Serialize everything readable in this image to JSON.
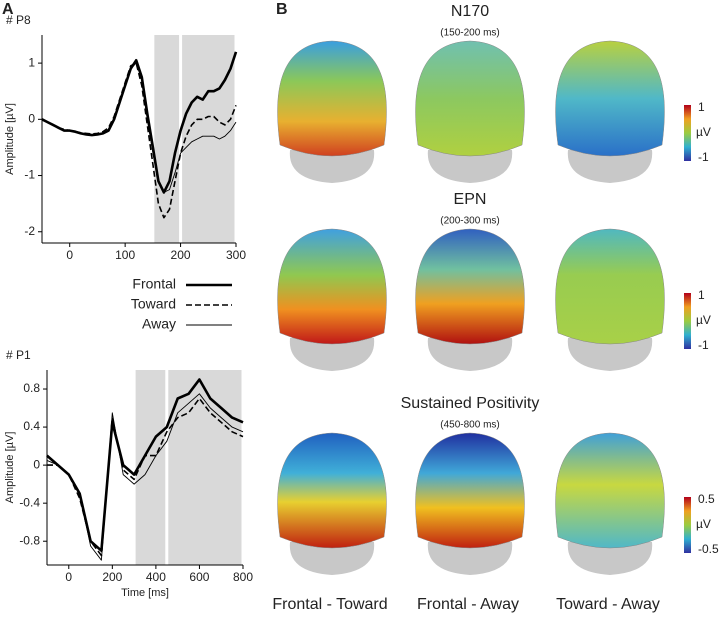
{
  "panel_labels": [
    "A",
    "B"
  ],
  "chart_data": [
    {
      "type": "line",
      "title": "# P8",
      "y_label": "Amplitude [µV]",
      "x": [
        -50,
        -40,
        -30,
        -20,
        -10,
        0,
        10,
        20,
        30,
        40,
        50,
        60,
        70,
        80,
        90,
        100,
        110,
        120,
        130,
        140,
        150,
        160,
        170,
        180,
        190,
        200,
        210,
        220,
        230,
        240,
        250,
        260,
        270,
        280,
        290,
        300
      ],
      "series": [
        {
          "name": "Frontal",
          "color": "#000000",
          "dash": "solid",
          "width": 2.6,
          "values": [
            0.0,
            -0.05,
            -0.1,
            -0.15,
            -0.2,
            -0.2,
            -0.22,
            -0.25,
            -0.27,
            -0.28,
            -0.27,
            -0.25,
            -0.2,
            0.0,
            0.3,
            0.6,
            0.9,
            1.05,
            0.75,
            0.1,
            -0.5,
            -1.1,
            -1.3,
            -1.1,
            -0.6,
            -0.2,
            0.1,
            0.3,
            0.4,
            0.35,
            0.5,
            0.5,
            0.55,
            0.7,
            0.9,
            1.2
          ]
        },
        {
          "name": "Toward",
          "color": "#000000",
          "dash": "dashed",
          "width": 1.6,
          "values": [
            0.0,
            -0.05,
            -0.1,
            -0.15,
            -0.18,
            -0.2,
            -0.22,
            -0.24,
            -0.25,
            -0.26,
            -0.25,
            -0.22,
            -0.15,
            0.05,
            0.35,
            0.65,
            0.95,
            1.0,
            0.6,
            -0.1,
            -0.8,
            -1.5,
            -1.75,
            -1.6,
            -1.1,
            -0.6,
            -0.3,
            -0.1,
            0.0,
            0.0,
            0.05,
            0.05,
            -0.05,
            -0.1,
            0.0,
            0.25
          ]
        },
        {
          "name": "Away",
          "color": "#000000",
          "dash": "solid",
          "width": 0.9,
          "values": [
            0.0,
            -0.05,
            -0.1,
            -0.15,
            -0.2,
            -0.2,
            -0.22,
            -0.25,
            -0.27,
            -0.28,
            -0.27,
            -0.25,
            -0.18,
            0.0,
            0.3,
            0.6,
            0.9,
            1.0,
            0.7,
            0.0,
            -0.6,
            -1.1,
            -1.3,
            -1.25,
            -0.95,
            -0.6,
            -0.5,
            -0.4,
            -0.35,
            -0.3,
            -0.3,
            -0.3,
            -0.35,
            -0.3,
            -0.2,
            -0.05
          ]
        }
      ],
      "xlim": [
        -50,
        300
      ],
      "ylim": [
        -2.2,
        1.5
      ],
      "xticks": [
        0,
        100,
        200,
        300
      ],
      "yticks": [
        -2,
        -1,
        0,
        1
      ],
      "shaded_ranges": [
        [
          150,
          200
        ],
        [
          200,
          300
        ]
      ]
    },
    {
      "type": "line",
      "title": "# P1",
      "y_label": "Amplitude [µV]",
      "x_label": "Time [ms]",
      "x": [
        -100,
        -50,
        0,
        50,
        100,
        150,
        200,
        250,
        300,
        350,
        400,
        450,
        500,
        550,
        600,
        650,
        700,
        750,
        800
      ],
      "series": [
        {
          "color": "#000000",
          "dash": "solid",
          "width": 2.6,
          "values": [
            0.1,
            0.0,
            -0.1,
            -0.3,
            -0.8,
            -0.9,
            0.45,
            0.0,
            -0.1,
            0.1,
            0.3,
            0.4,
            0.7,
            0.75,
            0.9,
            0.7,
            0.6,
            0.5,
            0.45
          ]
        },
        {
          "color": "#000000",
          "dash": "dashed",
          "width": 1.6,
          "values": [
            0.0,
            0.0,
            -0.1,
            -0.35,
            -0.8,
            -0.95,
            0.5,
            -0.05,
            -0.15,
            0.1,
            0.1,
            0.35,
            0.5,
            0.55,
            0.7,
            0.55,
            0.45,
            0.35,
            0.3
          ]
        },
        {
          "color": "#000000",
          "dash": "solid",
          "width": 0.9,
          "values": [
            0.05,
            0.0,
            -0.1,
            -0.3,
            -0.85,
            -1.0,
            0.55,
            -0.1,
            -0.2,
            -0.1,
            0.1,
            0.25,
            0.55,
            0.65,
            0.75,
            0.6,
            0.5,
            0.4,
            0.35
          ]
        }
      ],
      "xlim": [
        -100,
        800
      ],
      "ylim": [
        -1.05,
        1.0
      ],
      "xticks": [
        0,
        200,
        400,
        600,
        800
      ],
      "yticks": [
        -0.8,
        -0.4,
        0,
        0.4,
        0.8
      ],
      "shaded_ranges": [
        [
          300,
          450
        ],
        [
          450,
          800
        ]
      ]
    }
  ],
  "topography": {
    "columns": [
      "Frontal - Toward",
      "Frontal - Away",
      "Toward - Away"
    ],
    "rows": [
      {
        "title": "N170",
        "subtitle": "(150-200  ms)",
        "unit": "µV",
        "colorbar_ticks": [
          1,
          -1
        ]
      },
      {
        "title": "EPN",
        "subtitle": "(200-300  ms)",
        "unit": "µV",
        "colorbar_ticks": [
          1,
          -1
        ]
      },
      {
        "title": "Sustained Positivity",
        "subtitle": "(450-800  ms)",
        "unit": "µV",
        "colorbar_ticks": [
          0.5,
          -0.5
        ]
      }
    ]
  }
}
